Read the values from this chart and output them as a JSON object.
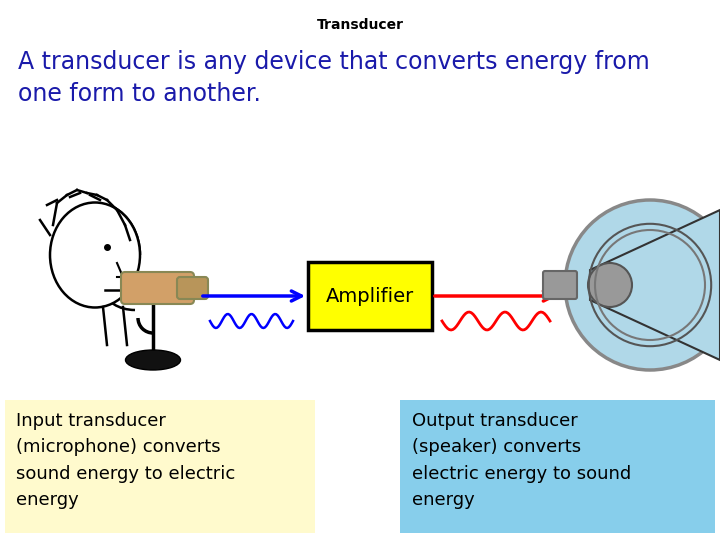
{
  "title": "Transducer",
  "title_fontsize": 10,
  "title_color": "#000000",
  "subtitle_line1": "A transducer is any device that converts energy from",
  "subtitle_line2": "one form to another.",
  "subtitle_fontsize": 17,
  "subtitle_color": "#1a1aaa",
  "amplifier_label": "Amplifier",
  "amplifier_box_color": "#FFFF00",
  "amplifier_border_color": "#000000",
  "amplifier_text_color": "#000000",
  "amplifier_fontsize": 14,
  "input_box_color": "#FFFACD",
  "input_box_text": "Input transducer\n(microphone) converts\nsound energy to electric\nenergy",
  "input_text_color": "#000000",
  "input_fontsize": 13,
  "output_box_color": "#87CEEB",
  "output_box_text": "Output transducer\n(speaker) converts\nelectric energy to sound\nenergy",
  "output_text_color": "#000000",
  "output_fontsize": 13,
  "arrow_blue_color": "#0000FF",
  "arrow_red_color": "#FF0000",
  "wave_blue_color": "#0000FF",
  "wave_red_color": "#FF0000",
  "background_color": "#FFFFFF",
  "fig_width": 7.2,
  "fig_height": 5.4,
  "dpi": 100
}
